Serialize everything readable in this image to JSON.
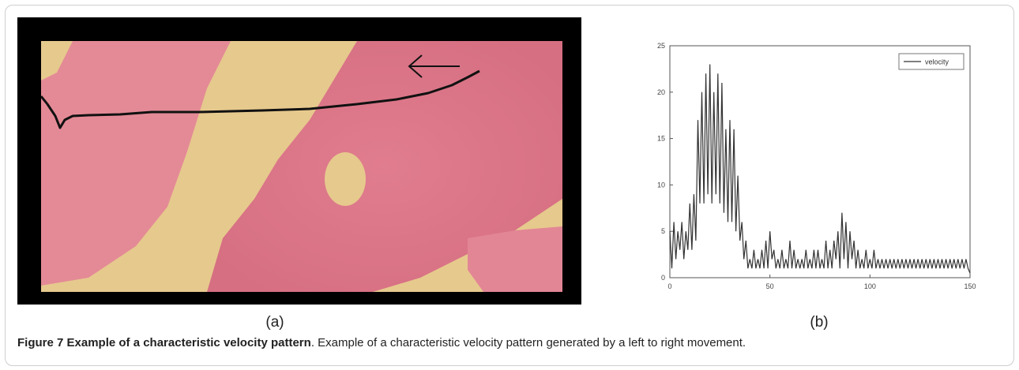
{
  "figure": {
    "panel_a_label": "(a)",
    "panel_b_label": "(b)",
    "caption_title": "Figure 7 Example of a characteristic velocity pattern",
    "caption_text": ". Example of a characteristic velocity pattern generated by a left to right movement."
  },
  "chart_data": {
    "type": "line",
    "title": "",
    "xlabel": "",
    "ylabel": "",
    "xlim": [
      0,
      150
    ],
    "ylim": [
      0,
      25
    ],
    "xticks": [
      0,
      50,
      100,
      150
    ],
    "yticks": [
      0,
      5,
      10,
      15,
      20,
      25
    ],
    "grid": false,
    "legend_position": "top-right",
    "series": [
      {
        "name": "velocity",
        "color": "#333333",
        "x": [
          0,
          1,
          2,
          3,
          4,
          5,
          6,
          7,
          8,
          9,
          10,
          11,
          12,
          13,
          14,
          15,
          16,
          17,
          18,
          19,
          20,
          21,
          22,
          23,
          24,
          25,
          26,
          27,
          28,
          29,
          30,
          31,
          32,
          33,
          34,
          35,
          36,
          37,
          38,
          39,
          40,
          41,
          42,
          43,
          44,
          45,
          46,
          47,
          48,
          49,
          50,
          51,
          52,
          53,
          54,
          55,
          56,
          57,
          58,
          59,
          60,
          61,
          62,
          63,
          64,
          65,
          66,
          67,
          68,
          69,
          70,
          71,
          72,
          73,
          74,
          75,
          76,
          77,
          78,
          79,
          80,
          81,
          82,
          83,
          84,
          85,
          86,
          87,
          88,
          89,
          90,
          91,
          92,
          93,
          94,
          95,
          96,
          97,
          98,
          99,
          100,
          101,
          102,
          103,
          104,
          105,
          106,
          107,
          108,
          109,
          110,
          111,
          112,
          113,
          114,
          115,
          116,
          117,
          118,
          119,
          120,
          121,
          122,
          123,
          124,
          125,
          126,
          127,
          128,
          129,
          130,
          131,
          132,
          133,
          134,
          135,
          136,
          137,
          138,
          139,
          140,
          141,
          142,
          143,
          144,
          145,
          146,
          147,
          148,
          149,
          150
        ],
        "y": [
          5,
          1,
          6,
          2,
          5,
          3,
          6,
          2,
          5,
          3,
          8,
          3,
          9,
          4,
          17,
          8,
          20,
          8,
          22,
          9,
          23,
          8,
          20,
          9,
          22,
          8,
          21,
          7,
          16,
          6,
          17,
          6,
          16,
          5,
          11,
          4,
          6,
          2,
          4,
          1,
          2,
          1,
          3,
          1,
          2,
          1,
          3,
          1,
          4,
          1,
          5,
          2,
          3,
          1,
          2,
          1,
          3,
          1,
          2,
          1,
          4,
          1,
          3,
          1,
          2,
          1,
          2,
          1,
          3,
          1,
          2,
          1,
          3,
          1,
          3,
          1,
          2,
          1,
          4,
          1,
          3,
          1,
          4,
          2,
          5,
          1,
          7,
          2,
          6,
          1,
          5,
          2,
          4,
          1,
          3,
          1,
          2,
          1,
          3,
          1,
          2,
          1,
          3,
          1,
          2,
          1,
          2,
          1,
          2,
          1,
          2,
          1,
          2,
          1,
          2,
          1,
          2,
          1,
          2,
          1,
          2,
          1,
          2,
          1,
          2,
          1,
          2,
          1,
          2,
          1,
          2,
          1,
          2,
          1,
          2,
          1,
          2,
          1,
          2,
          1,
          2,
          1,
          2,
          1,
          2,
          1,
          2,
          1,
          2,
          1,
          0.5
        ]
      }
    ]
  }
}
